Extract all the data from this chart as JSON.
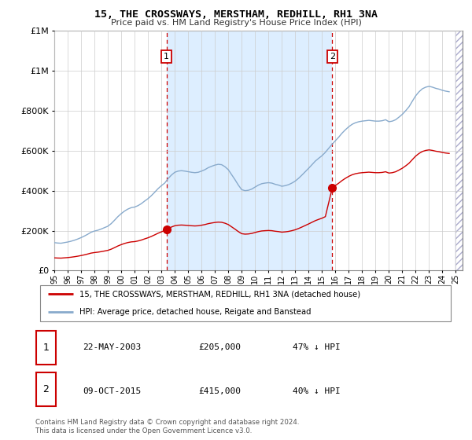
{
  "title": "15, THE CROSSWAYS, MERSTHAM, REDHILL, RH1 3NA",
  "subtitle": "Price paid vs. HM Land Registry's House Price Index (HPI)",
  "legend_line1": "15, THE CROSSWAYS, MERSTHAM, REDHILL, RH1 3NA (detached house)",
  "legend_line2": "HPI: Average price, detached house, Reigate and Banstead",
  "transaction1_date": "22-MAY-2003",
  "transaction1_price": "£205,000",
  "transaction1_note": "47% ↓ HPI",
  "transaction2_date": "09-OCT-2015",
  "transaction2_price": "£415,000",
  "transaction2_note": "40% ↓ HPI",
  "footnote": "Contains HM Land Registry data © Crown copyright and database right 2024.\nThis data is licensed under the Open Government Licence v3.0.",
  "red_color": "#cc0000",
  "blue_color": "#88aacc",
  "shade_color": "#ddeeff",
  "ylim": [
    0,
    1200000
  ],
  "yticks": [
    0,
    200000,
    400000,
    600000,
    800000,
    1000000,
    1200000
  ],
  "xlim_start": 1995.0,
  "xlim_end": 2025.5,
  "transaction1_x": 2003.38,
  "transaction1_y": 205000,
  "transaction2_x": 2015.77,
  "transaction2_y": 415000,
  "hpi_years": [
    1995.0,
    1995.25,
    1995.5,
    1995.75,
    1996.0,
    1996.25,
    1996.5,
    1996.75,
    1997.0,
    1997.25,
    1997.5,
    1997.75,
    1998.0,
    1998.25,
    1998.5,
    1998.75,
    1999.0,
    1999.25,
    1999.5,
    1999.75,
    2000.0,
    2000.25,
    2000.5,
    2000.75,
    2001.0,
    2001.25,
    2001.5,
    2001.75,
    2002.0,
    2002.25,
    2002.5,
    2002.75,
    2003.0,
    2003.25,
    2003.5,
    2003.75,
    2004.0,
    2004.25,
    2004.5,
    2004.75,
    2005.0,
    2005.25,
    2005.5,
    2005.75,
    2006.0,
    2006.25,
    2006.5,
    2006.75,
    2007.0,
    2007.25,
    2007.5,
    2007.75,
    2008.0,
    2008.25,
    2008.5,
    2008.75,
    2009.0,
    2009.25,
    2009.5,
    2009.75,
    2010.0,
    2010.25,
    2010.5,
    2010.75,
    2011.0,
    2011.25,
    2011.5,
    2011.75,
    2012.0,
    2012.25,
    2012.5,
    2012.75,
    2013.0,
    2013.25,
    2013.5,
    2013.75,
    2014.0,
    2014.25,
    2014.5,
    2014.75,
    2015.0,
    2015.25,
    2015.5,
    2015.75,
    2016.0,
    2016.25,
    2016.5,
    2016.75,
    2017.0,
    2017.25,
    2017.5,
    2017.75,
    2018.0,
    2018.25,
    2018.5,
    2018.75,
    2019.0,
    2019.25,
    2019.5,
    2019.75,
    2020.0,
    2020.25,
    2020.5,
    2020.75,
    2021.0,
    2021.25,
    2021.5,
    2021.75,
    2022.0,
    2022.25,
    2022.5,
    2022.75,
    2023.0,
    2023.25,
    2023.5,
    2023.75,
    2024.0,
    2024.25,
    2024.5
  ],
  "hpi_values": [
    140000,
    138000,
    137000,
    140000,
    143000,
    147000,
    152000,
    158000,
    165000,
    173000,
    182000,
    192000,
    198000,
    202000,
    208000,
    215000,
    222000,
    235000,
    252000,
    270000,
    285000,
    298000,
    308000,
    315000,
    318000,
    325000,
    335000,
    348000,
    360000,
    375000,
    392000,
    410000,
    425000,
    438000,
    460000,
    478000,
    492000,
    498000,
    500000,
    498000,
    495000,
    492000,
    490000,
    492000,
    498000,
    505000,
    515000,
    522000,
    528000,
    532000,
    530000,
    520000,
    505000,
    480000,
    455000,
    428000,
    405000,
    400000,
    402000,
    408000,
    418000,
    428000,
    435000,
    438000,
    440000,
    438000,
    432000,
    428000,
    422000,
    425000,
    430000,
    438000,
    448000,
    462000,
    478000,
    495000,
    512000,
    530000,
    548000,
    562000,
    575000,
    592000,
    612000,
    632000,
    650000,
    668000,
    688000,
    705000,
    720000,
    732000,
    740000,
    745000,
    748000,
    750000,
    752000,
    750000,
    748000,
    748000,
    750000,
    755000,
    745000,
    748000,
    755000,
    768000,
    782000,
    800000,
    820000,
    848000,
    875000,
    895000,
    910000,
    918000,
    922000,
    918000,
    912000,
    908000,
    902000,
    898000,
    895000
  ],
  "red_years_pre": [
    1995.0,
    1995.25,
    1995.5,
    1995.75,
    1996.0,
    1996.25,
    1996.5,
    1996.75,
    1997.0,
    1997.25,
    1997.5,
    1997.75,
    1998.0,
    1998.25,
    1998.5,
    1998.75,
    1999.0,
    1999.25,
    1999.5,
    1999.75,
    2000.0,
    2000.25,
    2000.5,
    2000.75,
    2001.0,
    2001.25,
    2001.5,
    2001.75,
    2002.0,
    2002.25,
    2002.5,
    2002.75,
    2003.0,
    2003.38
  ],
  "red_years_mid": [
    2003.38,
    2003.5,
    2003.75,
    2004.0,
    2004.25,
    2004.5,
    2004.75,
    2005.0,
    2005.25,
    2005.5,
    2005.75,
    2006.0,
    2006.25,
    2006.5,
    2006.75,
    2007.0,
    2007.25,
    2007.5,
    2007.75,
    2008.0,
    2008.25,
    2008.5,
    2008.75,
    2009.0,
    2009.25,
    2009.5,
    2009.75,
    2010.0,
    2010.25,
    2010.5,
    2010.75,
    2011.0,
    2011.25,
    2011.5,
    2011.75,
    2012.0,
    2012.25,
    2012.5,
    2012.75,
    2013.0,
    2013.25,
    2013.5,
    2013.75,
    2014.0,
    2014.25,
    2014.5,
    2014.75,
    2015.0,
    2015.25,
    2015.77
  ],
  "red_years_post": [
    2015.77,
    2016.0,
    2016.25,
    2016.5,
    2016.75,
    2017.0,
    2017.25,
    2017.5,
    2017.75,
    2018.0,
    2018.25,
    2018.5,
    2018.75,
    2019.0,
    2019.25,
    2019.5,
    2019.75,
    2020.0,
    2020.25,
    2020.5,
    2020.75,
    2021.0,
    2021.25,
    2021.5,
    2021.75,
    2022.0,
    2022.25,
    2022.5,
    2022.75,
    2023.0,
    2023.25,
    2023.5,
    2023.75,
    2024.0,
    2024.25,
    2024.5
  ]
}
